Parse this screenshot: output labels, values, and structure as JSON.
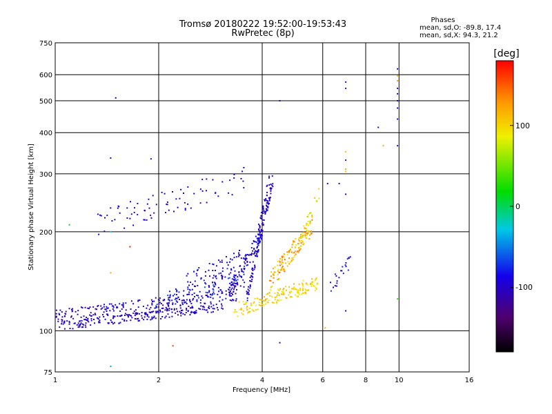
{
  "chart_data": {
    "type": "scatter",
    "title": "Tromsø 20180222 19:52:00-19:53:43",
    "subtitle": "RwPretec (8p)",
    "stats": {
      "heading": "Phases",
      "line_o": "mean, sd,O: -89.8, 17.4",
      "line_x": "mean, sd,X:  94.3, 21.2"
    },
    "xlabel": "Frequency [MHz]",
    "ylabel": "Stationary phase Virtual Height [km]",
    "x_scale": "log",
    "y_scale": "log",
    "xlim": [
      1,
      16
    ],
    "ylim": [
      75,
      750
    ],
    "x_ticks": [
      1,
      2,
      4,
      6,
      8,
      10,
      16
    ],
    "y_ticks": [
      75,
      100,
      200,
      300,
      400,
      500,
      600,
      750
    ],
    "grid": true,
    "colorbar": {
      "title": "[deg]",
      "range": [
        -180,
        180
      ],
      "ticks": [
        100,
        0,
        -100
      ],
      "colormap": "rainbow"
    },
    "clusters": [
      {
        "x": [
          1.0,
          3.1
        ],
        "y": [
          103,
          118
        ],
        "n": 190,
        "phase": [
          -115,
          -85
        ],
        "jitter": 0.03
      },
      {
        "x": [
          1.0,
          3.4
        ],
        "y": [
          110,
          128
        ],
        "n": 220,
        "phase": [
          -120,
          -80
        ],
        "jitter": 0.05
      },
      {
        "x": [
          1.9,
          3.6
        ],
        "y": [
          120,
          145
        ],
        "n": 110,
        "phase": [
          -115,
          -60
        ],
        "jitter": 0.06
      },
      {
        "x": [
          2.4,
          3.5
        ],
        "y": [
          140,
          165
        ],
        "n": 70,
        "phase": [
          -115,
          -70
        ],
        "jitter": 0.07
      },
      {
        "x": [
          3.2,
          4.0
        ],
        "y": [
          130,
          200
        ],
        "n": 110,
        "phase": [
          -115,
          -70
        ],
        "jitter": 0.06
      },
      {
        "x": [
          3.6,
          4.3
        ],
        "y": [
          125,
          290
        ],
        "n": 110,
        "phase": [
          -115,
          -80
        ],
        "jitter": 0.05
      },
      {
        "x": [
          3.3,
          5.8
        ],
        "y": [
          115,
          140
        ],
        "n": 170,
        "phase": [
          80,
          120
        ],
        "jitter": 0.05
      },
      {
        "x": [
          4.2,
          5.6
        ],
        "y": [
          140,
          210
        ],
        "n": 140,
        "phase": [
          80,
          150
        ],
        "jitter": 0.07
      },
      {
        "x": [
          1.3,
          3.6
        ],
        "y": [
          210,
          290
        ],
        "n": 80,
        "phase": [
          -120,
          -80
        ],
        "jitter": 0.09
      },
      {
        "x": [
          5.0,
          5.9
        ],
        "y": [
          170,
          270
        ],
        "n": 30,
        "phase": [
          60,
          120
        ],
        "jitter": 0.05
      },
      {
        "x": [
          6.3,
          7.3
        ],
        "y": [
          135,
          165
        ],
        "n": 22,
        "phase": [
          -110,
          -70
        ],
        "jitter": 0.05
      },
      {
        "x": [
          3.9,
          4.2
        ],
        "y": [
          200,
          290
        ],
        "n": 35,
        "phase": [
          -110,
          -90
        ],
        "jitter": 0.04
      }
    ],
    "points": [
      {
        "x": 7.0,
        "y": 570,
        "phase": -100
      },
      {
        "x": 7.0,
        "y": 545,
        "phase": -100
      },
      {
        "x": 7.0,
        "y": 350,
        "phase": 110
      },
      {
        "x": 7.0,
        "y": 330,
        "phase": -100
      },
      {
        "x": 7.0,
        "y": 310,
        "phase": 120
      },
      {
        "x": 7.0,
        "y": 305,
        "phase": 110
      },
      {
        "x": 7.0,
        "y": 260,
        "phase": -90
      },
      {
        "x": 7.0,
        "y": 115,
        "phase": -100
      },
      {
        "x": 9.9,
        "y": 625,
        "phase": -90
      },
      {
        "x": 9.9,
        "y": 595,
        "phase": 110
      },
      {
        "x": 9.9,
        "y": 575,
        "phase": 130
      },
      {
        "x": 9.9,
        "y": 545,
        "phase": -100
      },
      {
        "x": 9.9,
        "y": 525,
        "phase": -100
      },
      {
        "x": 9.9,
        "y": 500,
        "phase": -100
      },
      {
        "x": 9.9,
        "y": 475,
        "phase": -100
      },
      {
        "x": 9.9,
        "y": 440,
        "phase": -100
      },
      {
        "x": 9.9,
        "y": 365,
        "phase": -100
      },
      {
        "x": 8.7,
        "y": 415,
        "phase": -100
      },
      {
        "x": 9.0,
        "y": 365,
        "phase": 120
      },
      {
        "x": 6.7,
        "y": 280,
        "phase": -100
      },
      {
        "x": 6.2,
        "y": 280,
        "phase": -100
      },
      {
        "x": 1.5,
        "y": 510,
        "phase": -100
      },
      {
        "x": 1.45,
        "y": 335,
        "phase": -100
      },
      {
        "x": 1.9,
        "y": 333,
        "phase": -100
      },
      {
        "x": 1.1,
        "y": 210,
        "phase": 20
      },
      {
        "x": 1.45,
        "y": 200,
        "phase": -30
      },
      {
        "x": 1.65,
        "y": 180,
        "phase": 170
      },
      {
        "x": 2.2,
        "y": 90,
        "phase": 160
      },
      {
        "x": 1.45,
        "y": 78,
        "phase": -40
      },
      {
        "x": 4.5,
        "y": 92,
        "phase": -120
      },
      {
        "x": 4.5,
        "y": 500,
        "phase": -100
      },
      {
        "x": 3.5,
        "y": 305,
        "phase": -100
      },
      {
        "x": 9.9,
        "y": 125,
        "phase": 30
      },
      {
        "x": 6.1,
        "y": 102,
        "phase": 120
      },
      {
        "x": 1.45,
        "y": 150,
        "phase": 120
      }
    ]
  }
}
